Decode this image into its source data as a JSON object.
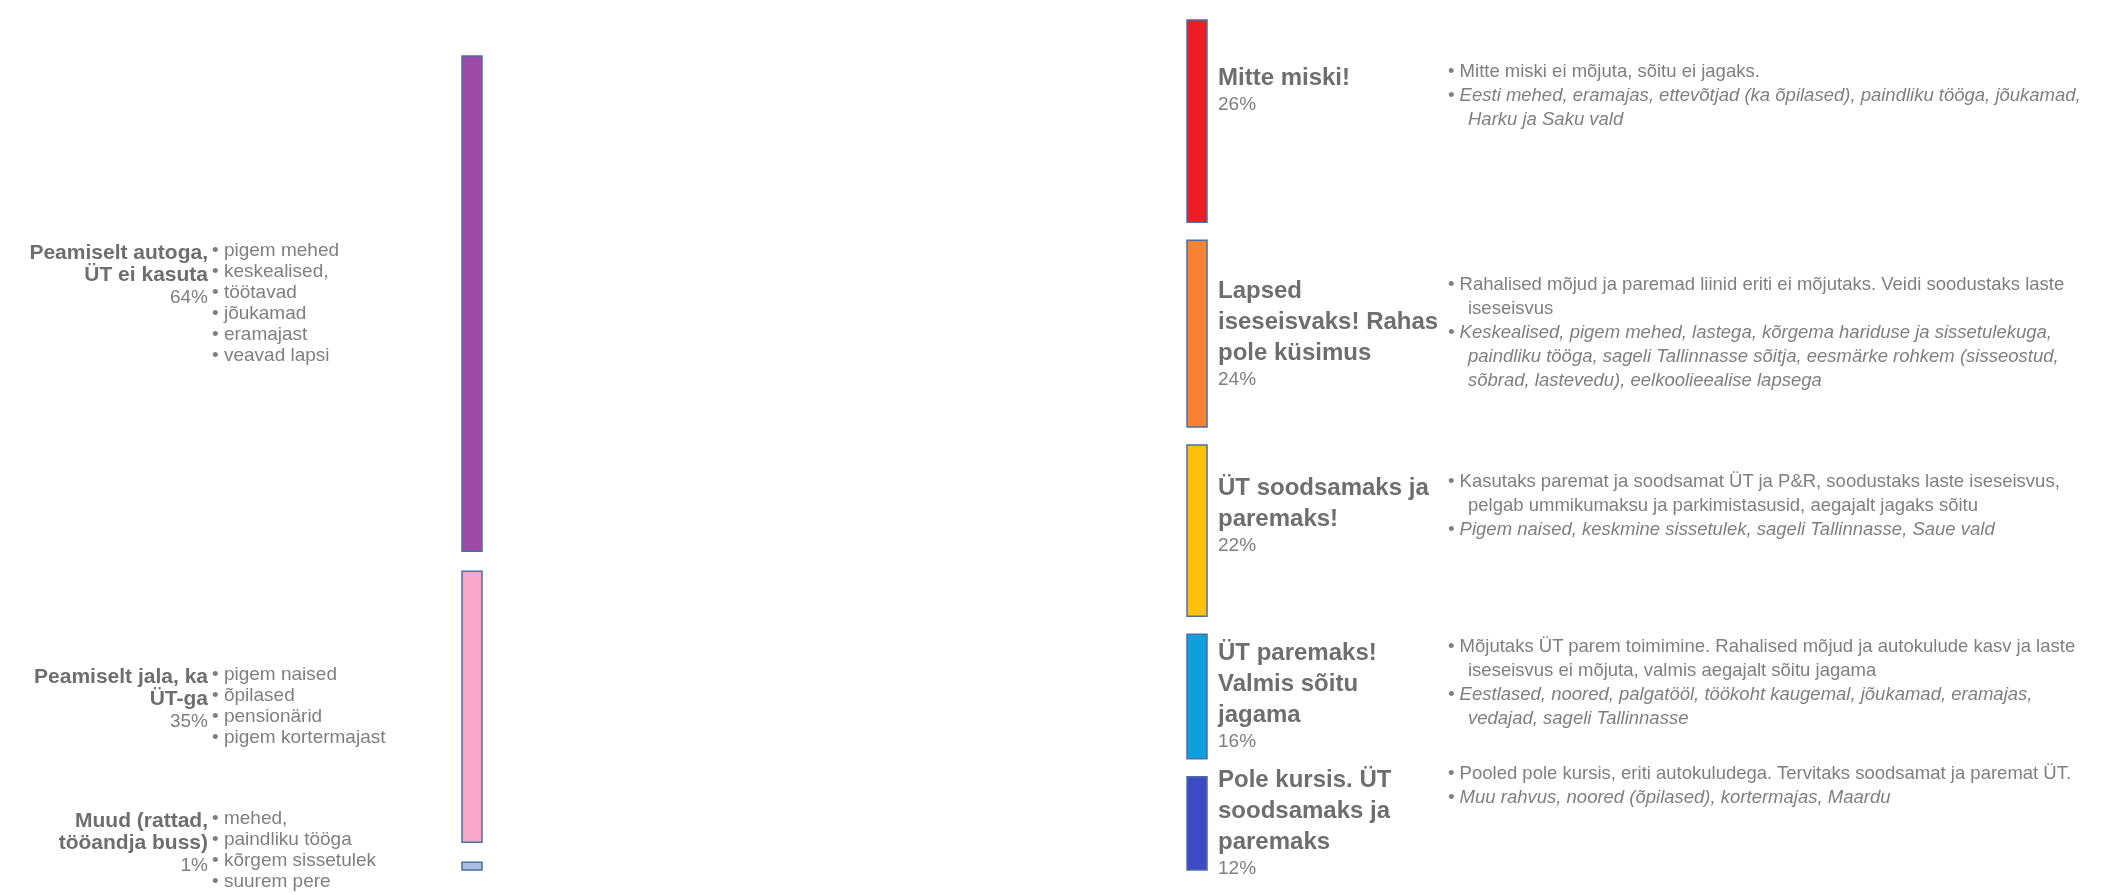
{
  "chart_data": [
    {
      "type": "other",
      "categories": [
        "Peamiselt autoga, ÜT ei kasuta",
        "Peamiselt jala, ka ÜT-ga",
        "Muud (rattad, tööandja buss)"
      ],
      "values": [
        64,
        35,
        1
      ],
      "value_labels": [
        "64%",
        "35%",
        "1%"
      ],
      "colors": [
        "#9b4aa5",
        "#f7a8c8",
        "#a9c0e0"
      ],
      "annotations": [
        "• pigem mehed\n• keskealised,\n• töötavad\n• jõukamad\n• eramajast\n• veavad lapsi",
        "• pigem naised\n• õpilased\n• pensionärid\n• pigem kortermajast",
        "• mehed,\n• paindliku tööga\n• kõrgem sissetulek\n• suurem pere"
      ]
    },
    {
      "type": "other",
      "categories": [
        "Mitte miski!",
        "Lapsed iseseisvaks! Rahas pole küsimus",
        "ÜT soodsamaks ja paremaks!",
        "ÜT paremaks! Valmis sõitu jagama",
        "Pole kursis. ÜT soodsamaks ja paremaks"
      ],
      "values": [
        26,
        24,
        22,
        16,
        12
      ],
      "value_labels": [
        "26%",
        "24%",
        "22%",
        "16%",
        "12%"
      ],
      "colors": [
        "#ee1c25",
        "#f58331",
        "#fdc10e",
        "#0ea0dd",
        "#3c4ac4"
      ],
      "annotations": [
        "• Mitte miski ei mõjuta, sõitu ei jagaks.\n• Eesti mehed, eramajas, ettevõtjad (ka õpilased), paindliku tööga, jõukamad, Harku ja Saku vald",
        "• Rahalised mõjud ja paremad liinid eriti ei mõjutaks. Veidi soodustaks laste iseseisvus\n• Keskealised, pigem mehed, lastega, kõrgema hariduse ja sissetulekuga, paindliku tööga, sageli Tallinnasse sõitja, eesmärke rohkem (sisseostud, sõbrad, lastevedu), eelkoolieealise lapsega",
        "• Kasutaks paremat ja soodsamat ÜT ja P&R, soodustaks laste iseseisvus, pelgab ummikumaksu ja parkimistasusid, aegajalt jagaks sõitu\n• Pigem naised, keskmine sissetulek, sageli Tallinnasse, Saue vald",
        "• Mõjutaks ÜT parem toimimine. Rahalised mõjud ja autokulude kasv ja laste iseseisvus ei mõjuta, valmis aegajalt sõitu jagama\n• Eestlased, noored, palgatööl, töökoht kaugemal, jõukamad, eramajas, vedajad, sageli Tallinnasse",
        "• Pooled pole kursis, eriti autokuludega. Tervitaks soodsamat ja paremat ÜT.\n• Muu rahvus, noored (õpilased), kortermajas, Maardu"
      ]
    }
  ]
}
